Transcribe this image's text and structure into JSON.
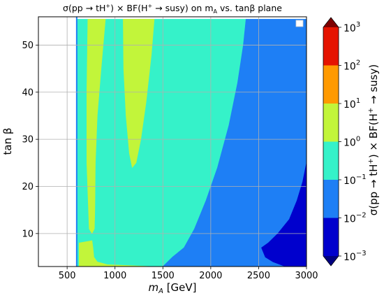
{
  "chart_data": {
    "type": "heatmap",
    "title": "σ(pp→tH⁺) × BF(H⁺→susy) on m_A vs. tanβ plane",
    "title_parts": {
      "prefix": "σ(pp → tH",
      "sup1": "+",
      "mid": ") × BF(H",
      "sup2": "+",
      "suffix1": " → susy) on m",
      "sub": "A",
      "suffix2": " vs. tanβ plane"
    },
    "xlabel": "m_A [GeV]",
    "xlabel_parts": {
      "main": "m",
      "sub": "A",
      "rest": " [GeV]"
    },
    "ylabel": "tan β",
    "xlim": [
      200,
      3000
    ],
    "ylim": [
      3,
      56
    ],
    "xticks": [
      500,
      1000,
      1500,
      2000,
      2500,
      3000
    ],
    "xtick_labels": [
      "500",
      "1000",
      "1500",
      "2000",
      "2500",
      "3000"
    ],
    "yticks": [
      10,
      20,
      30,
      40,
      50
    ],
    "ytick_labels": [
      "10",
      "20",
      "30",
      "40",
      "50"
    ],
    "grid": true,
    "legend": "top-right",
    "colorbar": {
      "label": "σ(pp → tH⁺) × BF(H⁺ → susy)",
      "label_parts": {
        "a": "σ(pp → tH",
        "b": "+",
        "c": ") × BF(H",
        "d": "+",
        "e": " → susy)"
      },
      "log_scale": true,
      "levels": [
        -3,
        -2,
        -1,
        0,
        1,
        2,
        3
      ],
      "tick_labels": [
        {
          "base": "10",
          "exp": "−3"
        },
        {
          "base": "10",
          "exp": "−2"
        },
        {
          "base": "10",
          "exp": "−1"
        },
        {
          "base": "10",
          "exp": "0"
        },
        {
          "base": "10",
          "exp": "1"
        },
        {
          "base": "10",
          "exp": "2"
        },
        {
          "base": "10",
          "exp": "3"
        }
      ],
      "bands": [
        {
          "range": [
            -3,
            -2
          ],
          "color": "#0000cd"
        },
        {
          "range": [
            -2,
            -1
          ],
          "color": "#1e7ff5"
        },
        {
          "range": [
            -1,
            0
          ],
          "color": "#35f2c9"
        },
        {
          "range": [
            0,
            1
          ],
          "color": "#c2f53a"
        },
        {
          "range": [
            1,
            2
          ],
          "color": "#ff9a00"
        },
        {
          "range": [
            2,
            3
          ],
          "color": "#e51400"
        }
      ],
      "extend_colors": {
        "under": "#000080",
        "over": "#7f0000"
      }
    },
    "regions": [
      {
        "level": "1e-1 to 1e0",
        "color": "#35f2c9",
        "polygon": [
          [
            600,
            3
          ],
          [
            600,
            55.5
          ],
          [
            2368,
            55.5
          ],
          [
            2340,
            50
          ],
          [
            2280,
            42
          ],
          [
            2190,
            33
          ],
          [
            2070,
            24
          ],
          [
            1950,
            17
          ],
          [
            1830,
            11
          ],
          [
            1720,
            7
          ],
          [
            1600,
            5
          ],
          [
            1500,
            3
          ]
        ]
      },
      {
        "level": "1e0 to 1e1",
        "color": "#c2f53a",
        "polygon": [
          [
            716,
            55.5
          ],
          [
            900,
            55.5
          ],
          [
            855,
            45
          ],
          [
            815,
            35
          ],
          [
            795,
            25
          ],
          [
            790,
            15
          ],
          [
            785,
            11
          ],
          [
            760,
            10
          ],
          [
            730,
            11
          ],
          [
            705,
            25
          ],
          [
            705,
            40
          ]
        ]
      },
      {
        "level": "1e0 to 1e1",
        "color": "#c2f53a",
        "polygon": [
          [
            1085,
            55.5
          ],
          [
            1410,
            55.5
          ],
          [
            1380,
            48
          ],
          [
            1325,
            38
          ],
          [
            1270,
            30
          ],
          [
            1220,
            25
          ],
          [
            1180,
            24
          ],
          [
            1150,
            27
          ],
          [
            1115,
            35
          ],
          [
            1090,
            45
          ]
        ]
      },
      {
        "level": "1e0 to 1e1",
        "color": "#c2f53a",
        "polygon": [
          [
            625,
            3
          ],
          [
            625,
            8
          ],
          [
            760,
            8.5
          ],
          [
            770,
            7
          ],
          [
            780,
            5
          ],
          [
            815,
            4
          ],
          [
            920,
            3.4
          ],
          [
            1400,
            3
          ]
        ]
      },
      {
        "level": "1e-2 to 1e-1",
        "color": "#1e7ff5",
        "polygon": [
          [
            2368,
            55.5
          ],
          [
            3000,
            55.5
          ],
          [
            3000,
            3
          ],
          [
            1500,
            3
          ],
          [
            1600,
            5
          ],
          [
            1720,
            7
          ],
          [
            1830,
            11
          ],
          [
            1950,
            17
          ],
          [
            2070,
            24
          ],
          [
            2190,
            33
          ],
          [
            2280,
            42
          ],
          [
            2340,
            50
          ]
        ]
      },
      {
        "level": "1e-3 to 1e-2",
        "color": "#0000cd",
        "polygon": [
          [
            3000,
            25
          ],
          [
            2960,
            21
          ],
          [
            2900,
            17
          ],
          [
            2820,
            13
          ],
          [
            2700,
            10
          ],
          [
            2600,
            8
          ],
          [
            2530,
            7
          ],
          [
            2570,
            5
          ],
          [
            2650,
            4
          ],
          [
            2780,
            3
          ],
          [
            3000,
            3
          ]
        ]
      }
    ],
    "empty_region": {
      "x": [
        200,
        600
      ],
      "color": "#ffffff"
    },
    "boundary_line": {
      "x": 600,
      "color": "#1e7ff5"
    }
  }
}
